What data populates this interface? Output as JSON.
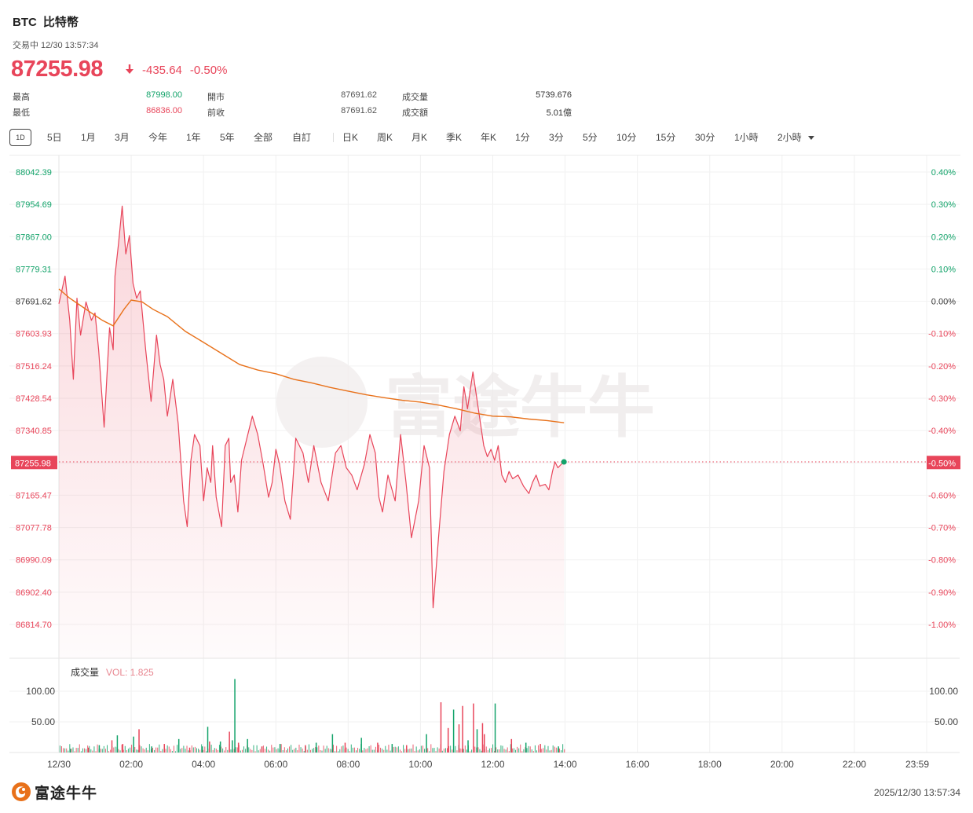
{
  "header": {
    "symbol": "BTC",
    "name": "比特幣",
    "status_line": "交易中 12/30 13:57:34"
  },
  "quote": {
    "price": "87255.98",
    "change": "-435.64",
    "change_pct": "-0.50%",
    "direction": "down",
    "colors": {
      "up": "#13a36a",
      "down": "#e8455a"
    }
  },
  "stats": {
    "high_label": "最高",
    "high": "87998.00",
    "low_label": "最低",
    "low": "86836.00",
    "open_label": "開市",
    "open": "87691.62",
    "prev_close_label": "前收",
    "prev_close": "87691.62",
    "volume_label": "成交量",
    "volume": "5739.676",
    "turnover_label": "成交額",
    "turnover": "5.01億"
  },
  "toolbar": {
    "period_items": [
      "1D",
      "5日",
      "1月",
      "3月",
      "今年",
      "1年",
      "5年",
      "全部",
      "自訂"
    ],
    "active_period": "1D",
    "kline_items": [
      "日K",
      "周K",
      "月K",
      "季K",
      "年K",
      "1分",
      "3分",
      "5分",
      "10分",
      "15分",
      "30分",
      "1小時",
      "2小時"
    ]
  },
  "chart_data": [
    {
      "type": "line",
      "y_ticks_left": [
        "88042.39",
        "87954.69",
        "87867.00",
        "87779.31",
        "87691.62",
        "87603.93",
        "87516.24",
        "87428.54",
        "87340.85",
        "87255.98",
        "87165.47",
        "87077.78",
        "86990.09",
        "86902.40",
        "86814.70"
      ],
      "y_ticks_right": [
        "0.40%",
        "0.30%",
        "0.20%",
        "0.10%",
        "0.00%",
        "-0.10%",
        "-0.20%",
        "-0.30%",
        "-0.40%",
        "-0.50%",
        "-0.60%",
        "-0.70%",
        "-0.80%",
        "-0.90%",
        "-1.00%"
      ],
      "ylim": [
        86814.7,
        88042.39
      ],
      "x_ticks": [
        "12/30",
        "02:00",
        "04:00",
        "06:00",
        "08:00",
        "10:00",
        "12:00",
        "14:00",
        "16:00",
        "18:00",
        "20:00",
        "22:00",
        "23:59"
      ],
      "x_range_hours": [
        0,
        24
      ],
      "reference_price": 87691.62,
      "current_price": 87255.98,
      "current_price_label": "87255.98",
      "current_pct_label": "-0.50%",
      "price_series": {
        "x": [
          0,
          0.17,
          0.3,
          0.4,
          0.5,
          0.6,
          0.75,
          0.9,
          1.0,
          1.1,
          1.25,
          1.4,
          1.5,
          1.55,
          1.65,
          1.75,
          1.85,
          1.95,
          2.05,
          2.15,
          2.25,
          2.4,
          2.55,
          2.7,
          2.8,
          2.9,
          3.0,
          3.15,
          3.3,
          3.45,
          3.55,
          3.65,
          3.75,
          3.9,
          4.0,
          4.1,
          4.2,
          4.25,
          4.35,
          4.5,
          4.6,
          4.7,
          4.75,
          4.85,
          4.95,
          5.05,
          5.2,
          5.35,
          5.5,
          5.65,
          5.8,
          5.9,
          6.0,
          6.1,
          6.25,
          6.4,
          6.55,
          6.75,
          6.9,
          7.05,
          7.25,
          7.45,
          7.65,
          7.8,
          7.95,
          8.1,
          8.25,
          8.45,
          8.6,
          8.75,
          8.85,
          8.95,
          9.1,
          9.3,
          9.45,
          9.6,
          9.75,
          9.95,
          10.1,
          10.25,
          10.35,
          10.5,
          10.65,
          10.8,
          10.95,
          11.1,
          11.2,
          11.3,
          11.45,
          11.6,
          11.75,
          11.85,
          11.95,
          12.05,
          12.15,
          12.25,
          12.35,
          12.45,
          12.55,
          12.7,
          12.85,
          13.0,
          13.1,
          13.2,
          13.3,
          13.45,
          13.55,
          13.65,
          13.72,
          13.8,
          13.9,
          13.97
        ],
        "values": [
          87685,
          87760,
          87640,
          87480,
          87700,
          87600,
          87690,
          87640,
          87660,
          87560,
          87350,
          87620,
          87560,
          87760,
          87850,
          87950,
          87820,
          87870,
          87740,
          87700,
          87720,
          87560,
          87420,
          87600,
          87520,
          87480,
          87380,
          87480,
          87360,
          87150,
          87080,
          87260,
          87330,
          87300,
          87150,
          87240,
          87200,
          87300,
          87160,
          87080,
          87300,
          87320,
          87200,
          87220,
          87120,
          87260,
          87320,
          87380,
          87330,
          87250,
          87160,
          87200,
          87290,
          87250,
          87150,
          87100,
          87320,
          87280,
          87200,
          87300,
          87200,
          87150,
          87280,
          87300,
          87240,
          87220,
          87180,
          87250,
          87330,
          87280,
          87160,
          87120,
          87220,
          87150,
          87330,
          87200,
          87050,
          87150,
          87300,
          87240,
          86860,
          87050,
          87230,
          87330,
          87380,
          87340,
          87460,
          87400,
          87500,
          87400,
          87300,
          87270,
          87290,
          87260,
          87300,
          87220,
          87200,
          87230,
          87210,
          87220,
          87190,
          87170,
          87200,
          87220,
          87190,
          87195,
          87180,
          87230,
          87255.98,
          87240,
          87250,
          87255.98
        ],
        "color": "#e8455a"
      },
      "avg_series": {
        "x": [
          0,
          0.3,
          0.6,
          0.9,
          1.2,
          1.5,
          1.8,
          2.0,
          2.3,
          2.6,
          3.0,
          3.5,
          4.0,
          4.5,
          5.0,
          5.5,
          6.0,
          6.5,
          7.0,
          7.5,
          8.0,
          8.5,
          9.0,
          9.5,
          10.0,
          10.5,
          11.0,
          11.5,
          12.0,
          12.5,
          13.0,
          13.5,
          13.97
        ],
        "values": [
          87725,
          87700,
          87680,
          87660,
          87640,
          87625,
          87670,
          87695,
          87690,
          87670,
          87650,
          87610,
          87580,
          87550,
          87520,
          87505,
          87495,
          87480,
          87470,
          87458,
          87448,
          87438,
          87430,
          87423,
          87418,
          87410,
          87400,
          87388,
          87380,
          87378,
          87372,
          87368,
          87362
        ],
        "color": "#e8711a"
      }
    },
    {
      "type": "bar",
      "title": "成交量",
      "indicator_label": "VOL: 1.825",
      "y_ticks": [
        "100.00",
        "50.00"
      ],
      "ylim": [
        0,
        120
      ],
      "volume_series": {
        "x": [
          0.3,
          0.8,
          1.1,
          1.45,
          1.6,
          1.75,
          2.05,
          2.2,
          2.55,
          2.9,
          3.3,
          3.6,
          3.95,
          4.1,
          4.15,
          4.45,
          4.7,
          4.78,
          4.85,
          4.95,
          5.2,
          5.6,
          6.1,
          6.8,
          7.1,
          7.55,
          7.9,
          8.35,
          8.8,
          9.2,
          9.6,
          10.15,
          10.55,
          10.75,
          10.9,
          11.05,
          11.15,
          11.3,
          11.45,
          11.55,
          11.7,
          11.75,
          12.05,
          12.5,
          12.9,
          13.3,
          13.8
        ],
        "values": [
          6,
          8,
          12,
          20,
          28,
          14,
          26,
          38,
          10,
          14,
          22,
          8,
          10,
          42,
          18,
          18,
          34,
          20,
          120,
          16,
          22,
          10,
          14,
          12,
          16,
          30,
          16,
          24,
          16,
          14,
          12,
          30,
          82,
          40,
          70,
          46,
          76,
          20,
          80,
          38,
          48,
          30,
          80,
          22,
          16,
          14,
          10
        ],
        "colors": [
          "#13a36a",
          "#e8455a",
          "#13a36a",
          "#e8455a",
          "#13a36a",
          "#e8455a",
          "#13a36a",
          "#e8455a",
          "#13a36a",
          "#e8455a",
          "#13a36a",
          "#e8455a",
          "#13a36a",
          "#13a36a",
          "#e8455a",
          "#13a36a",
          "#e8455a",
          "#13a36a",
          "#13a36a",
          "#e8455a",
          "#13a36a",
          "#e8455a",
          "#13a36a",
          "#e8455a",
          "#13a36a",
          "#13a36a",
          "#e8455a",
          "#13a36a",
          "#e8455a",
          "#13a36a",
          "#e8455a",
          "#13a36a",
          "#e8455a",
          "#e8455a",
          "#13a36a",
          "#e8455a",
          "#e8455a",
          "#13a36a",
          "#e8455a",
          "#13a36a",
          "#e8455a",
          "#e8455a",
          "#13a36a",
          "#e8455a",
          "#13a36a",
          "#e8455a",
          "#13a36a"
        ]
      }
    }
  ],
  "watermark": {
    "text": "富途牛牛"
  },
  "footer": {
    "brand": "富途牛牛",
    "timestamp": "2025/12/30 13:57:34"
  },
  "icons": {
    "down_arrow": "arrow-down-icon",
    "brand_logo": "futu-logo-icon",
    "dropdown": "caret-down-icon"
  }
}
